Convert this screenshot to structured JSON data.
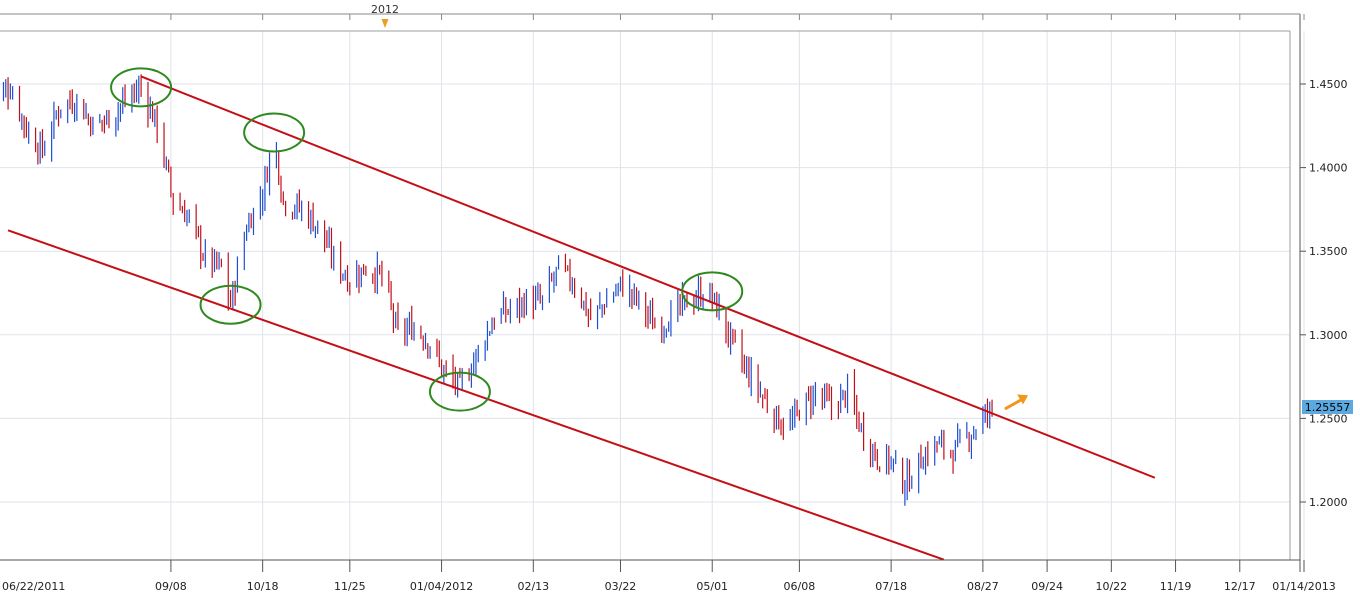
{
  "chart_data": {
    "type": "candlestick",
    "period_marker": "2012",
    "x_tick_labels": [
      "06/22/2011",
      "09/08",
      "10/18",
      "11/25",
      "01/04/2012",
      "02/13",
      "03/22",
      "05/01",
      "06/08",
      "07/18",
      "08/27",
      "09/24",
      "10/22",
      "11/19",
      "12/17",
      "01/14/2013"
    ],
    "y_tick_labels": [
      "1.4500",
      "1.4000",
      "1.3500",
      "1.3000",
      "1.2500",
      "1.2000"
    ],
    "ylim": [
      1.16,
      1.485
    ],
    "current_price": "1.25557",
    "grid": true,
    "colors": {
      "up": "#1f4fd1",
      "down": "#c0101a",
      "trendline": "#c40f16",
      "highlight_circle": "#2e8a1e",
      "arrow": "#f0961a",
      "price_tag": "#5aa9e0"
    },
    "trend_channel": {
      "upper": {
        "start": [
          "08/26/2011",
          1.4545
        ],
        "end": [
          "11/10/2012",
          1.2145
        ]
      },
      "lower": {
        "start": [
          "06/29/2011",
          1.3625
        ],
        "end": [
          "08/10/2012",
          1.1655
        ]
      }
    },
    "highlighted_points": [
      {
        "date": "08/26/2011",
        "price": 1.448,
        "label": "upper touch"
      },
      {
        "date": "10/23/2011",
        "price": 1.421,
        "label": "upper touch"
      },
      {
        "date": "10/04/2011",
        "price": 1.318,
        "label": "lower touch"
      },
      {
        "date": "01/12/2012",
        "price": 1.266,
        "label": "lower touch"
      },
      {
        "date": "05/01/2012",
        "price": 1.326,
        "label": "upper touch"
      }
    ],
    "close_path": [
      [
        "06/22/2011",
        1.44
      ],
      [
        "06/30/2011",
        1.448
      ],
      [
        "07/08/2011",
        1.42
      ],
      [
        "07/14/2011",
        1.41
      ],
      [
        "07/22/2011",
        1.438
      ],
      [
        "07/29/2011",
        1.44
      ],
      [
        "08/05/2011",
        1.425
      ],
      [
        "08/12/2011",
        1.43
      ],
      [
        "08/19/2011",
        1.44
      ],
      [
        "08/26/2011",
        1.448
      ],
      [
        "09/02/2011",
        1.425
      ],
      [
        "09/09/2011",
        1.38
      ],
      [
        "09/16/2011",
        1.37
      ],
      [
        "09/23/2011",
        1.345
      ],
      [
        "09/30/2011",
        1.34
      ],
      [
        "10/04/2011",
        1.318
      ],
      [
        "10/11/2011",
        1.365
      ],
      [
        "10/18/2011",
        1.385
      ],
      [
        "10/23/2011",
        1.418
      ],
      [
        "10/27/2011",
        1.38
      ],
      [
        "11/04/2011",
        1.375
      ],
      [
        "11/11/2011",
        1.365
      ],
      [
        "11/18/2011",
        1.345
      ],
      [
        "11/25/2011",
        1.333
      ],
      [
        "12/02/2011",
        1.34
      ],
      [
        "12/09/2011",
        1.335
      ],
      [
        "12/16/2011",
        1.3
      ],
      [
        "12/23/2011",
        1.305
      ],
      [
        "12/30/2011",
        1.295
      ],
      [
        "01/04/2012",
        1.28
      ],
      [
        "01/12/2012",
        1.268
      ],
      [
        "01/20/2012",
        1.29
      ],
      [
        "01/27/2012",
        1.31
      ],
      [
        "02/03/2012",
        1.315
      ],
      [
        "02/10/2012",
        1.32
      ],
      [
        "02/17/2012",
        1.32
      ],
      [
        "02/24/2012",
        1.34
      ],
      [
        "03/02/2012",
        1.33
      ],
      [
        "03/09/2012",
        1.31
      ],
      [
        "03/16/2012",
        1.32
      ],
      [
        "03/22/2012",
        1.33
      ],
      [
        "03/30/2012",
        1.32
      ],
      [
        "04/06/2012",
        1.305
      ],
      [
        "04/13/2012",
        1.31
      ],
      [
        "04/20/2012",
        1.32
      ],
      [
        "04/27/2012",
        1.325
      ],
      [
        "05/01/2012",
        1.322
      ],
      [
        "05/08/2012",
        1.3
      ],
      [
        "05/15/2012",
        1.28
      ],
      [
        "05/22/2012",
        1.265
      ],
      [
        "05/29/2012",
        1.25
      ],
      [
        "06/04/2012",
        1.245
      ],
      [
        "06/08/2012",
        1.255
      ],
      [
        "06/15/2012",
        1.265
      ],
      [
        "06/22/2012",
        1.257
      ],
      [
        "06/29/2012",
        1.265
      ],
      [
        "07/06/2012",
        1.24
      ],
      [
        "07/13/2012",
        1.225
      ],
      [
        "07/18/2012",
        1.225
      ],
      [
        "07/24/2012",
        1.21
      ],
      [
        "07/31/2012",
        1.225
      ],
      [
        "08/07/2012",
        1.235
      ],
      [
        "08/14/2012",
        1.23
      ],
      [
        "08/21/2012",
        1.24
      ],
      [
        "08/27/2012",
        1.25
      ],
      [
        "08/31/2012",
        1.256
      ]
    ]
  }
}
